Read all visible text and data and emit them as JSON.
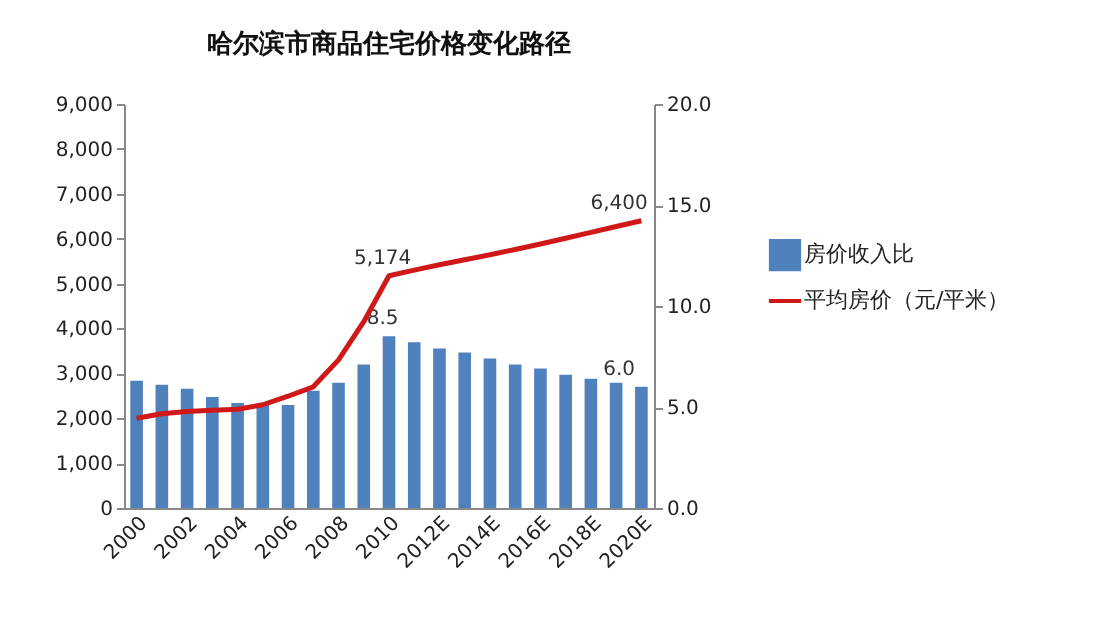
{
  "chart_data": {
    "type": "bar",
    "title": "哈尔滨市商品住宅价格变化路径",
    "categories": [
      "2000",
      null,
      "2002",
      null,
      "2004",
      null,
      "2006",
      null,
      "2008",
      null,
      "2010",
      null,
      "2012E",
      null,
      "2014E",
      null,
      "2016E",
      null,
      "2018E",
      null,
      "2020E"
    ],
    "series": [
      {
        "name": "房价收入比",
        "axis": "y2",
        "color": "#4f81bd",
        "values": [
          6.3,
          6.1,
          5.9,
          5.5,
          5.2,
          5.1,
          5.1,
          5.8,
          6.2,
          7.1,
          8.5,
          8.2,
          7.9,
          7.7,
          7.4,
          7.1,
          6.9,
          6.6,
          6.4,
          6.2,
          6.0
        ],
        "value_labels": [
          null,
          null,
          null,
          null,
          null,
          null,
          null,
          null,
          null,
          null,
          "8.5",
          null,
          null,
          null,
          null,
          null,
          null,
          null,
          null,
          null,
          "6.0"
        ]
      },
      {
        "name": "平均房价（元/平米）",
        "type": "line",
        "color": "#d01818",
        "values": [
          2000,
          2100,
          2150,
          2180,
          2200,
          2300,
          2490,
          2700,
          3300,
          4150,
          5174,
          5300,
          5420,
          5530,
          5640,
          5760,
          5880,
          6010,
          6140,
          6270,
          6400
        ],
        "value_labels": [
          null,
          null,
          null,
          null,
          null,
          null,
          null,
          null,
          null,
          null,
          "5,174",
          null,
          null,
          null,
          null,
          null,
          null,
          null,
          null,
          null,
          "6,400"
        ]
      }
    ],
    "ylim": [
      0,
      9000
    ],
    "yticks": [
      0,
      {
        "value": 1000,
        "label": "1,000"
      },
      {
        "value": 2000,
        "label": "2,000"
      },
      {
        "value": 3000,
        "label": "3,000"
      },
      {
        "value": 4000,
        "label": "4,000"
      },
      {
        "value": 5000,
        "label": "5,000"
      },
      {
        "value": 6000,
        "label": "6,000"
      },
      {
        "value": 7000,
        "label": "7,000"
      },
      {
        "value": 8000,
        "label": "8,000"
      },
      {
        "value": 9000,
        "label": "9,000"
      }
    ],
    "y2lim": [
      0,
      20
    ],
    "y2ticks": [
      {
        "value": 0,
        "label": "0.0"
      },
      {
        "value": 5,
        "label": "5.0"
      },
      {
        "value": 10,
        "label": "10.0"
      },
      {
        "value": 15,
        "label": "15.0"
      },
      {
        "value": 20,
        "label": "20.0"
      }
    ],
    "grid": false,
    "legend": "right",
    "marker": "none",
    "line_style": "solid"
  }
}
